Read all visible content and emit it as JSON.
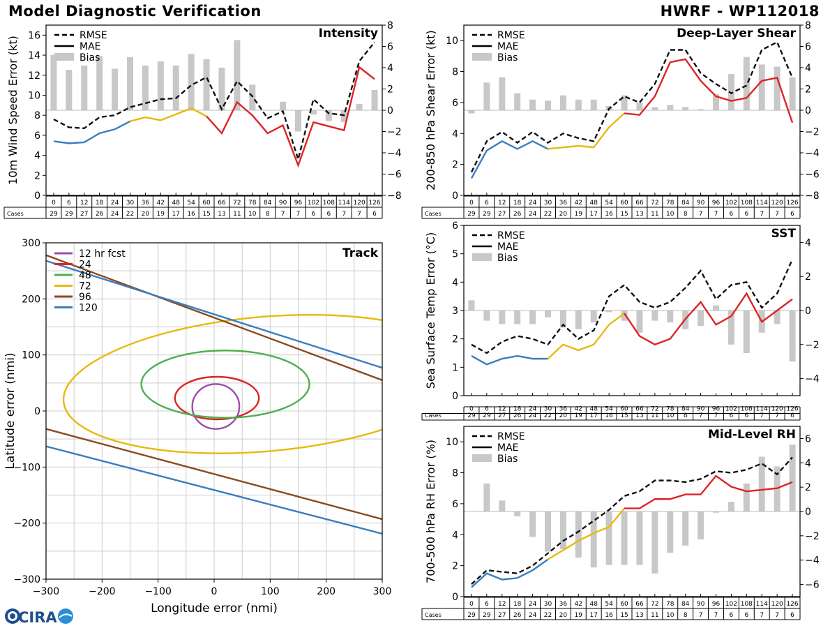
{
  "header": {
    "title_left": "Model Diagnostic Verification",
    "title_right": "HWRF - WP112018"
  },
  "logo_text": "CIRA",
  "colors": {
    "rmse": "#111111",
    "blue": "#3a7dbf",
    "yellow": "#e8b90e",
    "red": "#de2424",
    "bias": "#c8c8c8",
    "grid": "#cccccc",
    "purple": "#9b4ea8",
    "green": "#4caf50",
    "brown": "#8c4a22"
  },
  "cases_table": {
    "label": "Cases",
    "hours": [
      "0",
      "6",
      "12",
      "18",
      "24",
      "30",
      "36",
      "42",
      "48",
      "54",
      "60",
      "66",
      "72",
      "78",
      "84",
      "90",
      "96",
      "102",
      "108",
      "114",
      "120",
      "126"
    ],
    "counts": [
      "29",
      "29",
      "27",
      "26",
      "24",
      "22",
      "20",
      "19",
      "17",
      "16",
      "15",
      "13",
      "11",
      "10",
      "8",
      "7",
      "7",
      "6",
      "6",
      "7",
      "7",
      "6"
    ]
  },
  "chart_data": [
    {
      "id": "intensity",
      "type": "line",
      "title": "Intensity",
      "ylabel": "10m Wind Speed Error (kt)",
      "ylim": [
        0,
        17
      ],
      "yticks": [
        0,
        2,
        4,
        6,
        8,
        10,
        12,
        14,
        16
      ],
      "y2lim": [
        -8,
        8
      ],
      "y2ticks": [
        -8,
        -6,
        -4,
        -2,
        0,
        2,
        4,
        6,
        8
      ],
      "legend": [
        "RMSE",
        "MAE",
        "Bias"
      ],
      "x": [
        0,
        6,
        12,
        18,
        24,
        30,
        36,
        42,
        48,
        54,
        60,
        66,
        72,
        78,
        84,
        90,
        96,
        102,
        108,
        114,
        120,
        126
      ],
      "rmse": [
        7.6,
        6.8,
        6.7,
        7.8,
        8.0,
        8.8,
        9.2,
        9.6,
        9.7,
        11.0,
        11.8,
        8.6,
        11.4,
        9.9,
        7.7,
        8.4,
        3.6,
        9.6,
        8.2,
        8.0,
        13.4,
        15.3
      ],
      "mae": [
        5.4,
        5.2,
        5.3,
        6.2,
        6.6,
        7.4,
        7.8,
        7.5,
        8.1,
        8.7,
        7.9,
        6.2,
        9.3,
        8.0,
        6.2,
        7.0,
        3.0,
        7.3,
        6.9,
        6.5,
        12.8,
        11.6
      ],
      "bias": [
        5.2,
        3.8,
        4.2,
        5.1,
        3.9,
        5.0,
        4.2,
        4.6,
        4.2,
        5.3,
        4.8,
        4.0,
        6.6,
        2.4,
        0,
        0.8,
        -2.0,
        -0.4,
        -1.0,
        -1.1,
        0.6,
        1.9
      ]
    },
    {
      "id": "shear",
      "type": "line",
      "title": "Deep-Layer Shear",
      "ylabel": "200-850 hPa Shear Error (kt)",
      "ylim": [
        0,
        11
      ],
      "yticks": [
        0,
        2,
        4,
        6,
        8,
        10
      ],
      "y2lim": [
        -8,
        8
      ],
      "y2ticks": [
        -8,
        -6,
        -4,
        -2,
        0,
        2,
        4,
        6,
        8
      ],
      "legend": [
        "RMSE",
        "MAE",
        "Bias"
      ],
      "x": [
        0,
        6,
        12,
        18,
        24,
        30,
        36,
        42,
        48,
        54,
        60,
        66,
        72,
        78,
        84,
        90,
        96,
        102,
        108,
        114,
        120,
        126
      ],
      "rmse": [
        1.5,
        3.5,
        4.1,
        3.4,
        4.1,
        3.4,
        4.0,
        3.7,
        3.5,
        5.6,
        6.4,
        6.0,
        7.2,
        9.4,
        9.4,
        7.9,
        7.2,
        6.6,
        7.1,
        9.4,
        9.9,
        7.6
      ],
      "mae": [
        1.1,
        2.9,
        3.5,
        3.0,
        3.5,
        3.0,
        3.1,
        3.2,
        3.1,
        4.4,
        5.3,
        5.2,
        6.4,
        8.6,
        8.8,
        7.4,
        6.4,
        6.1,
        6.3,
        7.4,
        7.6,
        4.7
      ],
      "bias": [
        -0.3,
        2.6,
        3.1,
        1.6,
        1.0,
        0.9,
        1.4,
        1.0,
        1.0,
        0.4,
        1.4,
        0.7,
        0.3,
        0.5,
        0.3,
        0.1,
        1.5,
        3.4,
        5.0,
        4.3,
        4.1,
        3.1
      ]
    },
    {
      "id": "sst",
      "type": "line",
      "title": "SST",
      "ylabel": "Sea Surface Temp Error (°C)",
      "ylim": [
        0,
        6
      ],
      "yticks": [
        0,
        1,
        2,
        3,
        4,
        5,
        6
      ],
      "y2lim": [
        -5,
        5
      ],
      "y2ticks": [
        -4,
        -2,
        0,
        2,
        4
      ],
      "legend": [
        "RMSE",
        "MAE",
        "Bias"
      ],
      "x": [
        0,
        6,
        12,
        18,
        24,
        30,
        36,
        42,
        48,
        54,
        60,
        66,
        72,
        78,
        84,
        90,
        96,
        102,
        108,
        114,
        120,
        126
      ],
      "rmse": [
        1.8,
        1.5,
        1.9,
        2.1,
        2.0,
        1.8,
        2.5,
        2.0,
        2.3,
        3.5,
        3.9,
        3.3,
        3.1,
        3.3,
        3.8,
        4.4,
        3.4,
        3.9,
        4.0,
        3.1,
        3.6,
        4.8
      ],
      "mae": [
        1.4,
        1.1,
        1.3,
        1.4,
        1.3,
        1.3,
        1.8,
        1.6,
        1.8,
        2.5,
        2.9,
        2.1,
        1.8,
        2.0,
        2.7,
        3.3,
        2.5,
        2.8,
        3.6,
        2.6,
        3.0,
        3.4
      ],
      "bias": [
        0.6,
        -0.6,
        -0.8,
        -0.8,
        -0.8,
        -0.4,
        -1.0,
        -1.1,
        -0.7,
        -0.1,
        -0.6,
        -1.3,
        -0.6,
        -0.7,
        -1.1,
        -0.9,
        0.3,
        -2.0,
        -2.5,
        -1.3,
        -0.8,
        -3.0
      ]
    },
    {
      "id": "rh",
      "type": "line",
      "title": "Mid-Level RH",
      "ylabel": "700-500 hPa RH Error (%)",
      "ylim": [
        0,
        11
      ],
      "yticks": [
        0,
        2,
        4,
        6,
        8,
        10
      ],
      "y2lim": [
        -7,
        7
      ],
      "y2ticks": [
        -6,
        -4,
        -2,
        0,
        2,
        4,
        6
      ],
      "legend": [
        "RMSE",
        "MAE",
        "Bias"
      ],
      "x": [
        0,
        6,
        12,
        18,
        24,
        30,
        36,
        42,
        48,
        54,
        60,
        66,
        72,
        78,
        84,
        90,
        96,
        102,
        108,
        114,
        120,
        126
      ],
      "rmse": [
        0.8,
        1.7,
        1.6,
        1.5,
        2.0,
        2.8,
        3.6,
        4.2,
        4.9,
        5.6,
        6.5,
        6.8,
        7.5,
        7.5,
        7.4,
        7.6,
        8.1,
        8.0,
        8.2,
        8.6,
        7.9,
        9.0
      ],
      "mae": [
        0.6,
        1.5,
        1.1,
        1.2,
        1.7,
        2.4,
        3.0,
        3.6,
        4.1,
        4.5,
        5.7,
        5.7,
        6.3,
        6.3,
        6.6,
        6.6,
        7.8,
        7.1,
        6.8,
        6.9,
        7.0,
        7.4
      ],
      "bias": [
        0,
        2.3,
        0.9,
        -0.4,
        -2.1,
        -3.3,
        -3.1,
        -3.8,
        -4.6,
        -4.4,
        -4.4,
        -4.4,
        -5.1,
        -3.4,
        -2.8,
        -2.3,
        -0.1,
        0.8,
        2.3,
        4.5,
        3.7,
        5.5
      ]
    },
    {
      "id": "track",
      "type": "scatter",
      "title": "Track",
      "xlabel": "Longitude error (nmi)",
      "ylabel": "Latitude error (nmi)",
      "xlim": [
        -300,
        300
      ],
      "ylim": [
        -300,
        300
      ],
      "xticks": [
        -300,
        -200,
        -100,
        0,
        100,
        200,
        300
      ],
      "yticks": [
        -300,
        -200,
        -100,
        0,
        100,
        200,
        300
      ],
      "legend": [
        "12 hr fcst",
        "24",
        "48",
        "72",
        "96",
        "120"
      ],
      "ellipses": [
        {
          "name": "12 hr fcst",
          "cx": 3,
          "cy": 8,
          "rx": 42,
          "ry": 40,
          "angle": 0
        },
        {
          "name": "24",
          "cx": 5,
          "cy": 23,
          "rx": 75,
          "ry": 38,
          "angle": 0
        },
        {
          "name": "48",
          "cx": 20,
          "cy": 48,
          "rx": 150,
          "ry": 60,
          "angle": 0
        },
        {
          "name": "72",
          "cx": 90,
          "cy": 48,
          "rx": 360,
          "ry": 120,
          "angle": -5
        }
      ],
      "lines": [
        {
          "name": "96",
          "points": [
            [
              -300,
              278
            ],
            [
              300,
              55
            ]
          ]
        },
        {
          "name": "96",
          "points": [
            [
              -300,
              -32
            ],
            [
              300,
              -193
            ]
          ]
        },
        {
          "name": "120",
          "points": [
            [
              -300,
              268
            ],
            [
              300,
              77
            ]
          ]
        },
        {
          "name": "120",
          "points": [
            [
              -300,
              -63
            ],
            [
              300,
              -219
            ]
          ]
        }
      ]
    }
  ]
}
